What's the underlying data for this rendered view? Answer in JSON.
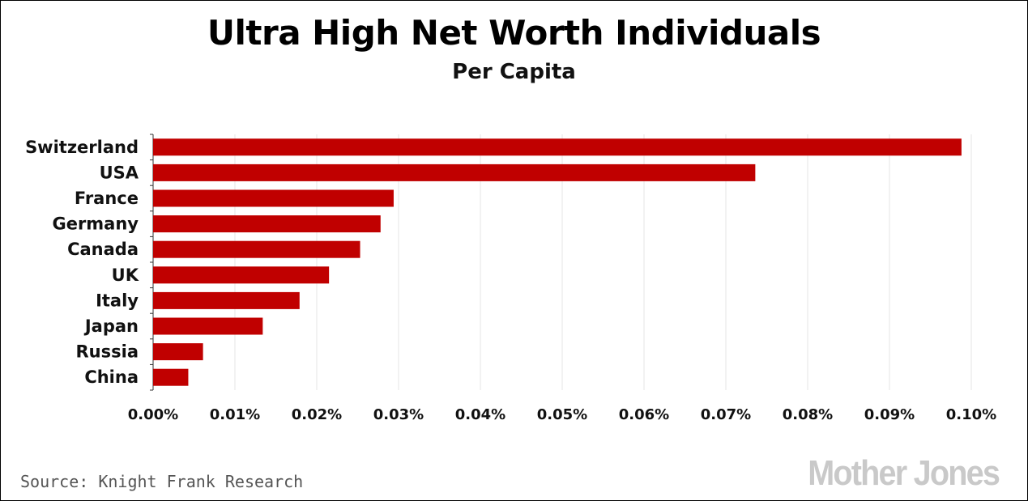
{
  "chart_data": {
    "type": "bar",
    "orientation": "horizontal",
    "title": "Ultra High Net Worth Individuals",
    "subtitle": "Per Capita",
    "categories": [
      "Switzerland",
      "USA",
      "France",
      "Germany",
      "Canada",
      "UK",
      "Italy",
      "Japan",
      "Russia",
      "China"
    ],
    "values": [
      0.0988,
      0.0736,
      0.0294,
      0.0278,
      0.0253,
      0.0215,
      0.0179,
      0.0134,
      0.0061,
      0.0043
    ],
    "unit": "%",
    "xlim": [
      0,
      0.1
    ],
    "xticks": [
      "0.00%",
      "0.01%",
      "0.02%",
      "0.03%",
      "0.04%",
      "0.05%",
      "0.06%",
      "0.07%",
      "0.08%",
      "0.09%",
      "0.10%"
    ],
    "grid": "vertical",
    "bar_color": "#c00000",
    "grid_color": "#e6e6e6"
  },
  "source": "Source: Knight Frank Research",
  "logo": "Mother Jones"
}
